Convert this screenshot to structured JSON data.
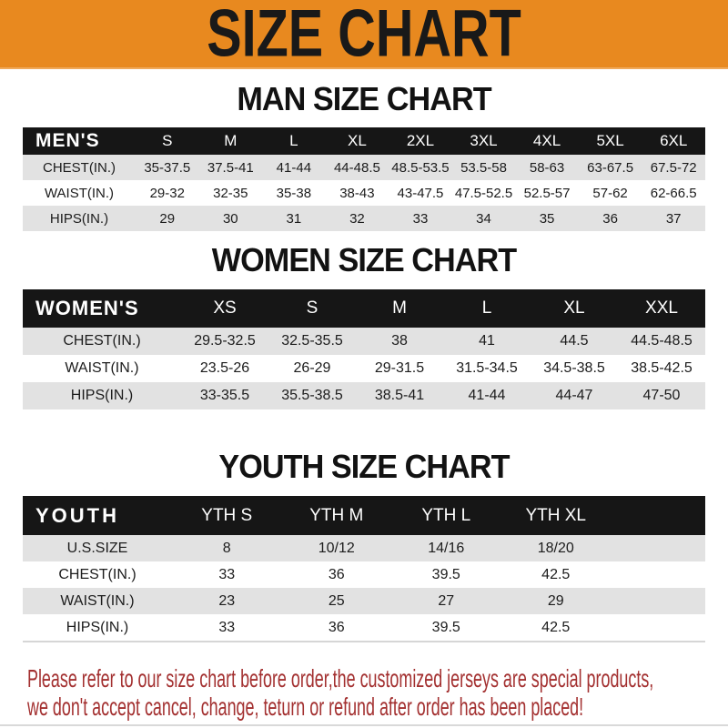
{
  "banner": {
    "title": "SIZE CHART",
    "bg_color": "#e8891f",
    "text_color": "#191919"
  },
  "sections": [
    {
      "title": "MAN SIZE CHART",
      "table": {
        "header_label": "MEN'S",
        "columns": [
          "S",
          "M",
          "L",
          "XL",
          "2XL",
          "3XL",
          "4XL",
          "5XL",
          "6XL"
        ],
        "rows": [
          {
            "label": "CHEST(IN.)",
            "values": [
              "35-37.5",
              "37.5-41",
              "41-44",
              "44-48.5",
              "48.5-53.5",
              "53.5-58",
              "58-63",
              "63-67.5",
              "67.5-72"
            ]
          },
          {
            "label": "WAIST(IN.)",
            "values": [
              "29-32",
              "32-35",
              "35-38",
              "38-43",
              "43-47.5",
              "47.5-52.5",
              "52.5-57",
              "57-62",
              "62-66.5"
            ]
          },
          {
            "label": "HIPS(IN.)",
            "values": [
              "29",
              "30",
              "31",
              "32",
              "33",
              "34",
              "35",
              "36",
              "37"
            ]
          }
        ]
      }
    },
    {
      "title": "WOMEN SIZE CHART",
      "table": {
        "header_label": "WOMEN'S",
        "columns": [
          "XS",
          "S",
          "M",
          "L",
          "XL",
          "XXL"
        ],
        "rows": [
          {
            "label": "CHEST(IN.)",
            "values": [
              "29.5-32.5",
              "32.5-35.5",
              "38",
              "41",
              "44.5",
              "44.5-48.5"
            ]
          },
          {
            "label": "WAIST(IN.)",
            "values": [
              "23.5-26",
              "26-29",
              "29-31.5",
              "31.5-34.5",
              "34.5-38.5",
              "38.5-42.5"
            ]
          },
          {
            "label": "HIPS(IN.)",
            "values": [
              "33-35.5",
              "35.5-38.5",
              "38.5-41",
              "41-44",
              "44-47",
              "47-50"
            ]
          }
        ]
      }
    },
    {
      "title": "YOUTH SIZE CHART",
      "table": {
        "header_label": "YOUTH",
        "columns": [
          "YTH S",
          "YTH M",
          "YTH L",
          "YTH XL"
        ],
        "rows": [
          {
            "label": "U.S.SIZE",
            "values": [
              "8",
              "10/12",
              "14/16",
              "18/20"
            ]
          },
          {
            "label": "CHEST(IN.)",
            "values": [
              "33",
              "36",
              "39.5",
              "42.5"
            ]
          },
          {
            "label": "WAIST(IN.)",
            "values": [
              "23",
              "25",
              "27",
              "29"
            ]
          },
          {
            "label": "HIPS(IN.)",
            "values": [
              "33",
              "36",
              "39.5",
              "42.5"
            ]
          }
        ]
      }
    }
  ],
  "footer": {
    "line1": "Please refer to our size chart before order,the customized jerseys are special products,",
    "line2": "we don't accept cancel, change, teturn or refund after order has been placed!",
    "text_color": "#a33030"
  },
  "colors": {
    "banner_bg": "#e8891f",
    "table_header_bar": "#161616",
    "row_alternate": "#e2e2e2",
    "footer_text": "#a33030"
  }
}
